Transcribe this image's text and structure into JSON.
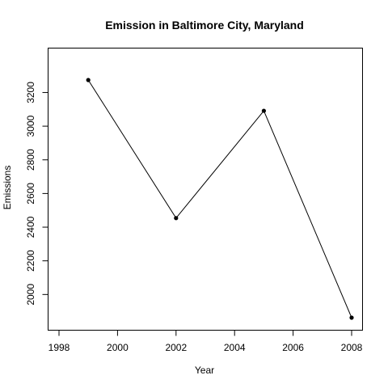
{
  "chart_data": {
    "type": "line",
    "title": "Emission in Baltimore City, Maryland",
    "xlabel": "Year",
    "ylabel": "Emissions",
    "x": [
      1999,
      2002,
      2005,
      2008
    ],
    "series": [
      {
        "values": [
          3274.18,
          2453.92,
          3091.35,
          1862.28
        ]
      }
    ],
    "xlim": [
      1998,
      2008
    ],
    "ylim": [
      1862.28,
      3274.18
    ],
    "x_ticks": [
      1998,
      2000,
      2002,
      2004,
      2006,
      2008
    ],
    "y_ticks": [
      2000,
      2200,
      2400,
      2600,
      2800,
      3000,
      3200
    ],
    "x_tick_labels": [
      "1998",
      "2000",
      "2002",
      "2004",
      "2006",
      "2008"
    ],
    "y_tick_labels": [
      "2000",
      "2200",
      "2400",
      "2600",
      "2800",
      "3000",
      "3200"
    ],
    "grid": false,
    "legend": "none",
    "marker": "filled-circle",
    "line_color": "#000000"
  }
}
